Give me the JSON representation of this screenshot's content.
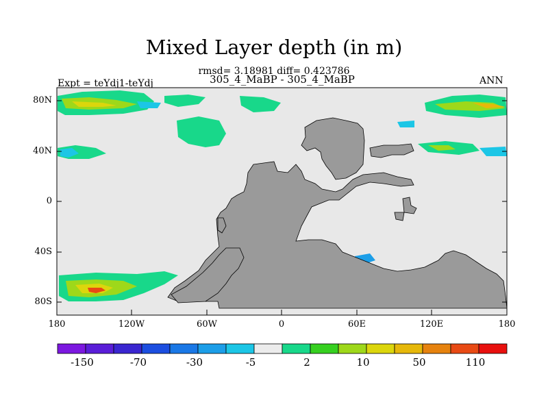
{
  "title": "Mixed Layer depth (in m)",
  "subtitle_stats": "rmsd= 3.18981 diff= 0.423786",
  "subtitle_cases": "305_4_MaBP - 305_4_MaBP",
  "left_label": "Expt = teYdj1-teYdj",
  "right_label": "ANN",
  "map": {
    "lat_ticks": [
      "80N",
      "40N",
      "0",
      "40S",
      "80S"
    ],
    "lon_ticks": [
      "180",
      "120W",
      "60W",
      "0",
      "60E",
      "120E",
      "180"
    ],
    "land_color": "#9a9a9a",
    "ocean_color": "#e8e8e8"
  },
  "colorbar": {
    "colors": [
      "#7c18e0",
      "#5a1ed8",
      "#3a26d0",
      "#1c4ee0",
      "#1a78e6",
      "#1c9ee8",
      "#1cc6e6",
      "#ececec",
      "#18d88a",
      "#36d020",
      "#9ed81a",
      "#dcd60c",
      "#e6b80a",
      "#e6820e",
      "#e84a14",
      "#e8100e"
    ],
    "labels": [
      "-150",
      "-70",
      "-30",
      "-5",
      "2",
      "10",
      "50",
      "110"
    ]
  }
}
